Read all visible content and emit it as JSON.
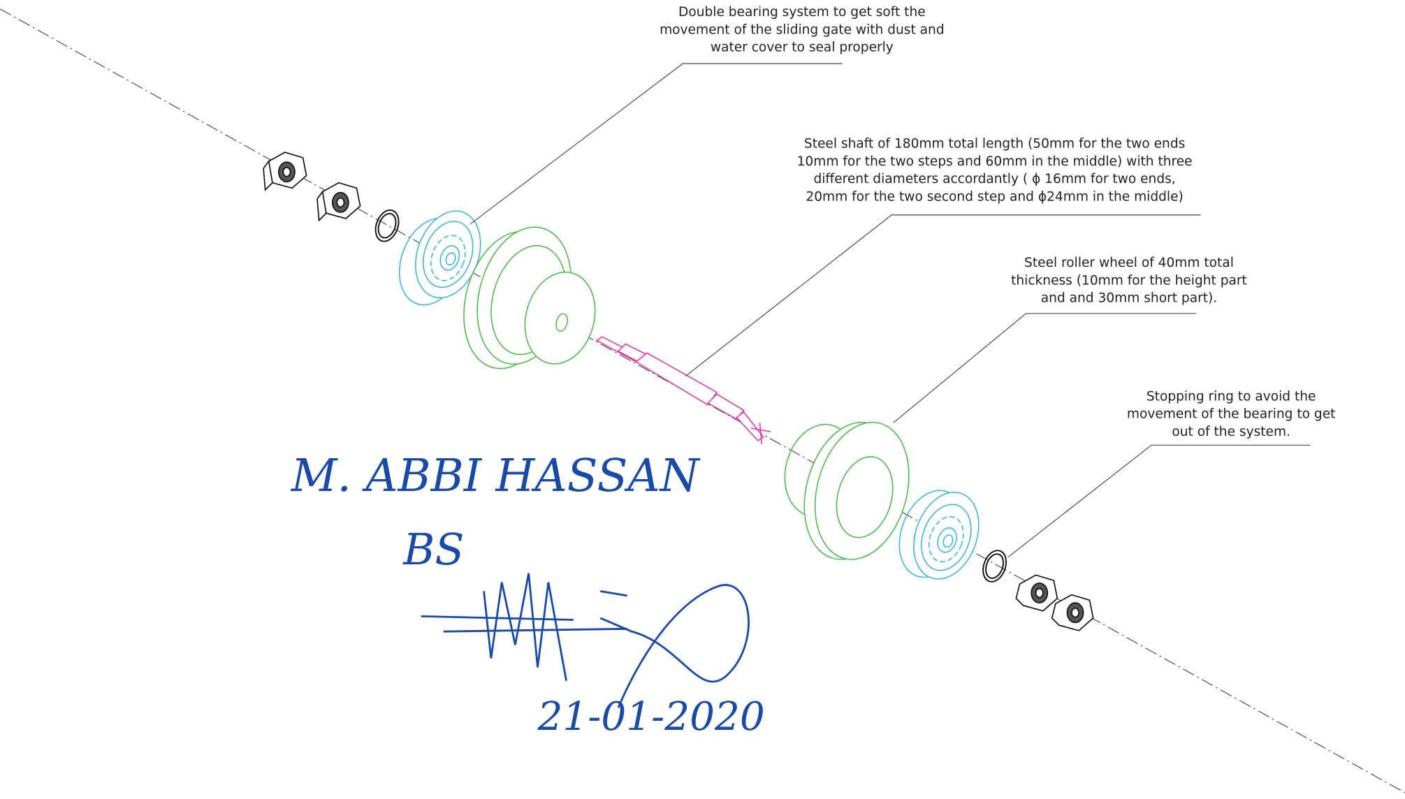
{
  "annotations": [
    {
      "lines": [
        "Double bearing system to get soft the",
        "movement of the sliding gate with dust and",
        "water cover to seal properly"
      ]
    },
    {
      "lines": [
        "Steel shaft of 180mm total length (50mm for the two ends",
        "10mm for the two steps and 60mm in the middle) with three",
        "different diameters accordantly  ( ϕ 16mm for two ends,",
        "20mm for the two second step  and ϕ24mm in the middle)"
      ]
    },
    {
      "lines": [
        "Steel roller wheel of 40mm total",
        "thickness (10mm for the height part",
        "and and 30mm short part)."
      ]
    },
    {
      "lines": [
        "Stopping ring to avoid the",
        "movement of the bearing to get",
        "out of the system."
      ]
    }
  ],
  "handwriting": {
    "name": "M. ABBI HASSAN",
    "initials": "BS",
    "date": "21-01-2020"
  }
}
